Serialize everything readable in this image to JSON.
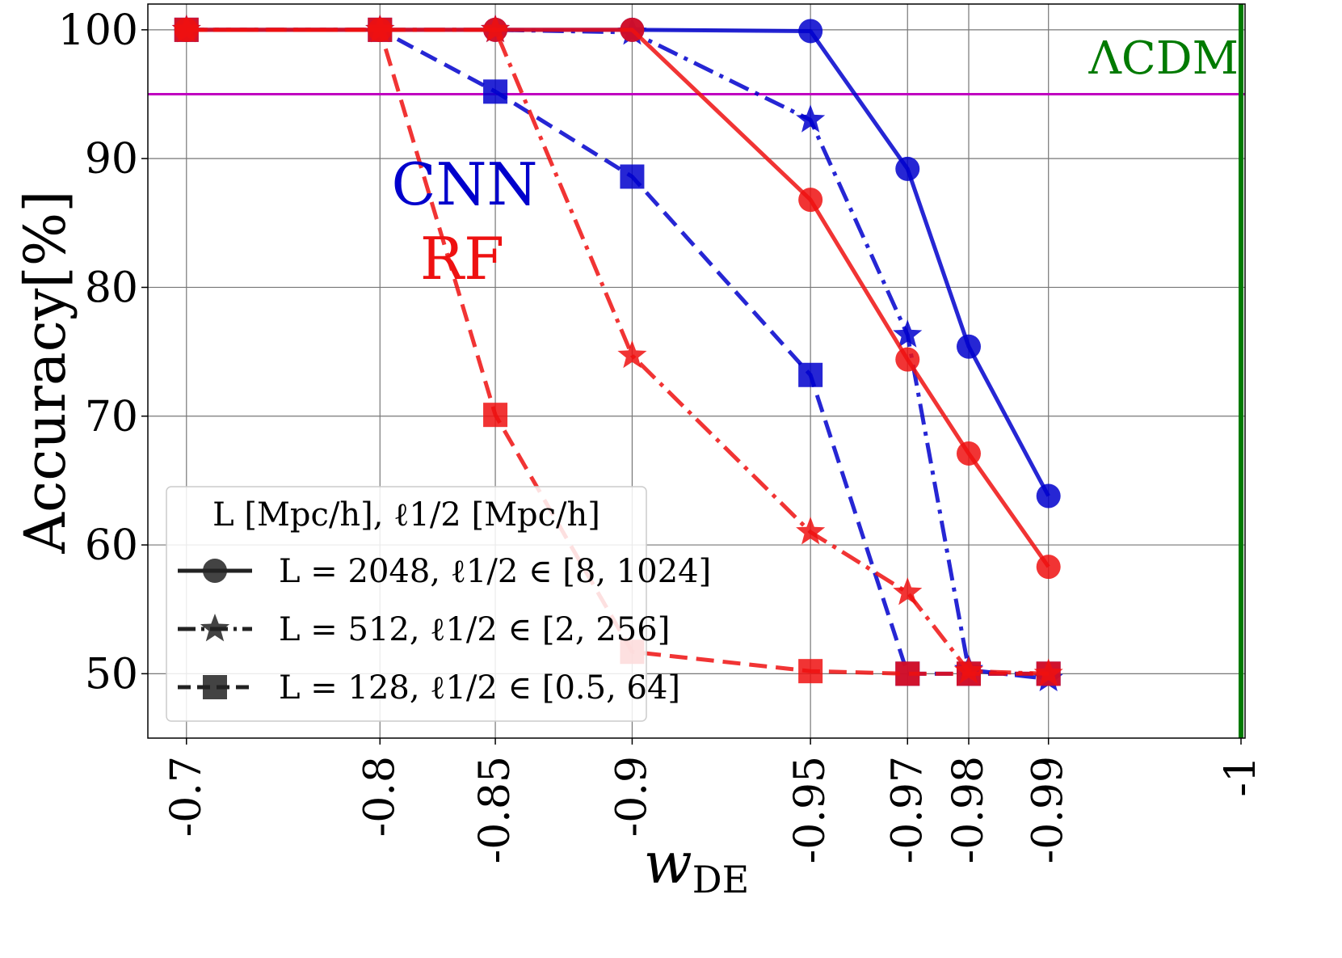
{
  "chart_data": {
    "type": "line",
    "title": "",
    "xlabel": "w_DE",
    "xlabel_main": "w",
    "xlabel_sub": "DE",
    "ylabel": "Accuracy[%]",
    "ylim": [
      45,
      102
    ],
    "x_ticks": [
      -0.7,
      -0.8,
      -0.85,
      -0.9,
      -0.95,
      -0.97,
      -0.98,
      -0.99,
      -1
    ],
    "x_tick_labels": [
      "-0.7",
      "-0.8",
      "-0.85",
      "-0.9",
      "-0.95",
      "-0.97",
      "-0.98",
      "-0.99",
      "-1"
    ],
    "y_ticks": [
      50,
      60,
      70,
      80,
      90,
      100
    ],
    "y_tick_labels": [
      "50",
      "60",
      "70",
      "80",
      "90",
      "100"
    ],
    "grid": true,
    "reference_lines": {
      "threshold_95": 95,
      "lcdm_x": -1
    },
    "annotations": {
      "cnn": "CNN",
      "rf": "RF",
      "lcdm": "ΛCDM"
    },
    "colors": {
      "cnn": "#0000cc",
      "rf": "#ee1111",
      "threshold": "#c000c0",
      "lcdm": "#007a00",
      "legend_marker": "#222222"
    },
    "legend": {
      "position": "lower-left",
      "title": "L [Mpc/h], ℓ1/2 [Mpc/h]",
      "entries": [
        {
          "label": "L = 2048, ℓ1/2 ∈ [8, 1024]",
          "marker": "circle",
          "linestyle": "solid"
        },
        {
          "label": "L = 512, ℓ1/2 ∈ [2, 256]",
          "marker": "star",
          "linestyle": "dashdot"
        },
        {
          "label": "L = 128, ℓ1/2 ∈ [0.5, 64]",
          "marker": "square",
          "linestyle": "dashed"
        }
      ]
    },
    "series": [
      {
        "name": "CNN L=2048",
        "method": "cnn",
        "marker": "circle",
        "linestyle": "solid",
        "x": [
          -0.7,
          -0.8,
          -0.85,
          -0.9,
          -0.95,
          -0.97,
          -0.98,
          -0.99
        ],
        "values": [
          100,
          100,
          100,
          100,
          99.9,
          89.2,
          75.4,
          63.8
        ]
      },
      {
        "name": "CNN L=512",
        "method": "cnn",
        "marker": "star",
        "linestyle": "dashdot",
        "x": [
          -0.7,
          -0.8,
          -0.85,
          -0.9,
          -0.95,
          -0.97,
          -0.98,
          -0.99
        ],
        "values": [
          100,
          100,
          100,
          99.8,
          93.0,
          76.3,
          50.3,
          49.6
        ]
      },
      {
        "name": "CNN L=128",
        "method": "cnn",
        "marker": "square",
        "linestyle": "dashed",
        "x": [
          -0.7,
          -0.8,
          -0.85,
          -0.9,
          -0.95,
          -0.97,
          -0.98,
          -0.99
        ],
        "values": [
          100,
          100,
          95.2,
          88.6,
          73.2,
          50.0,
          50.0,
          50.0
        ]
      },
      {
        "name": "RF L=2048",
        "method": "rf",
        "marker": "circle",
        "linestyle": "solid",
        "x": [
          -0.7,
          -0.8,
          -0.85,
          -0.9,
          -0.95,
          -0.97,
          -0.98,
          -0.99
        ],
        "values": [
          100,
          100,
          100,
          100,
          86.8,
          74.4,
          67.1,
          58.3
        ]
      },
      {
        "name": "RF L=512",
        "method": "rf",
        "marker": "star",
        "linestyle": "dashdot",
        "x": [
          -0.7,
          -0.8,
          -0.85,
          -0.9,
          -0.95,
          -0.97,
          -0.98,
          -0.99
        ],
        "values": [
          100,
          100,
          100,
          74.7,
          61.0,
          56.3,
          50.2,
          50.0
        ]
      },
      {
        "name": "RF L=128",
        "method": "rf",
        "marker": "square",
        "linestyle": "dashed",
        "x": [
          -0.7,
          -0.8,
          -0.85,
          -0.9,
          -0.95,
          -0.97,
          -0.98,
          -0.99
        ],
        "values": [
          100,
          100,
          70.1,
          51.7,
          50.2,
          50.0,
          50.0,
          50.0
        ]
      }
    ]
  }
}
